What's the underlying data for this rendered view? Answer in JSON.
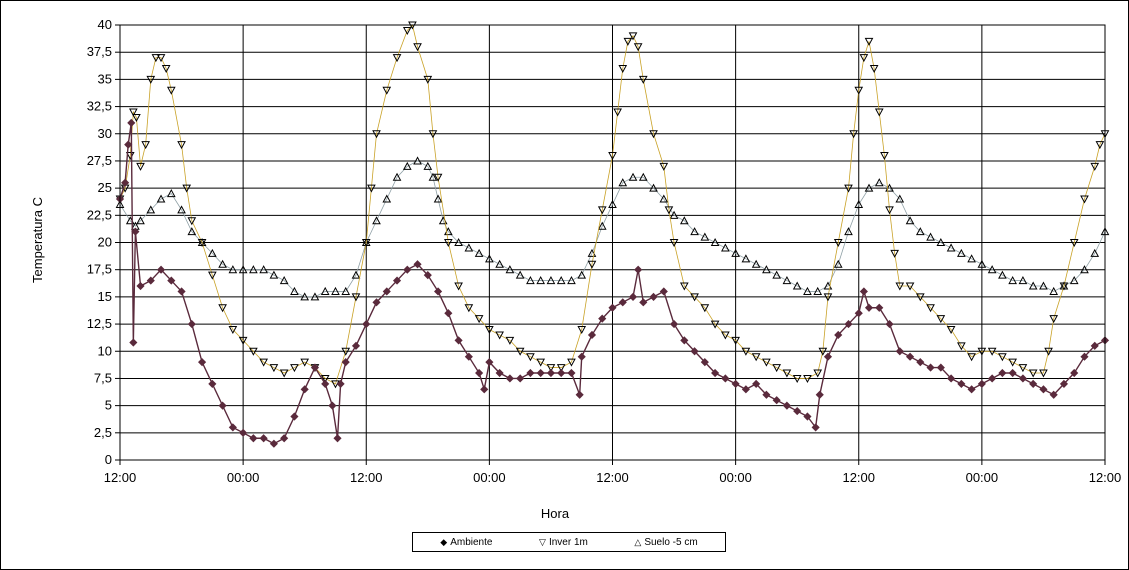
{
  "chart_data": {
    "type": "line",
    "xlabel": "Hora",
    "ylabel": "Temperatura C",
    "x_unit": "hours",
    "xlim": [
      0,
      96
    ],
    "ylim": [
      0,
      40
    ],
    "x_tick_labels": [
      "12:00",
      "00:00",
      "12:00",
      "00:00",
      "12:00",
      "00:00",
      "12:00",
      "00:00",
      "12:00"
    ],
    "y_tick_labels": [
      "0",
      "2,5",
      "5",
      "7,5",
      "10",
      "12,5",
      "15",
      "17,5",
      "20",
      "22,5",
      "25",
      "27,5",
      "30",
      "32,5",
      "35",
      "37,5",
      "40"
    ],
    "grid": true,
    "legend_position": "bottom",
    "series": [
      {
        "name": "Ambiente",
        "marker": "diamond",
        "color": "#5a2a3c",
        "points": [
          [
            0,
            24
          ],
          [
            0.5,
            25.5
          ],
          [
            0.8,
            29
          ],
          [
            1.1,
            31
          ],
          [
            1.3,
            10.8
          ],
          [
            1.5,
            21
          ],
          [
            2,
            16
          ],
          [
            3,
            16.5
          ],
          [
            4,
            17.5
          ],
          [
            5,
            16.5
          ],
          [
            6,
            15.5
          ],
          [
            7,
            12.5
          ],
          [
            8,
            9
          ],
          [
            9,
            7
          ],
          [
            10,
            5
          ],
          [
            11,
            3
          ],
          [
            12,
            2.5
          ],
          [
            13,
            2
          ],
          [
            14,
            2
          ],
          [
            15,
            1.5
          ],
          [
            16,
            2
          ],
          [
            17,
            4
          ],
          [
            18,
            6.5
          ],
          [
            19,
            8.5
          ],
          [
            20,
            7
          ],
          [
            20.7,
            5
          ],
          [
            21.2,
            2
          ],
          [
            21.5,
            7
          ],
          [
            22,
            9
          ],
          [
            23,
            10.5
          ],
          [
            24,
            12.5
          ],
          [
            25,
            14.5
          ],
          [
            26,
            15.5
          ],
          [
            27,
            16.5
          ],
          [
            28,
            17.5
          ],
          [
            29,
            18
          ],
          [
            30,
            17
          ],
          [
            31,
            15.5
          ],
          [
            32,
            13.5
          ],
          [
            33,
            11
          ],
          [
            34,
            9.5
          ],
          [
            35,
            8
          ],
          [
            35.5,
            6.5
          ],
          [
            36,
            9
          ],
          [
            37,
            8
          ],
          [
            38,
            7.5
          ],
          [
            39,
            7.5
          ],
          [
            40,
            8
          ],
          [
            41,
            8
          ],
          [
            42,
            8
          ],
          [
            43,
            8
          ],
          [
            44,
            8
          ],
          [
            44.8,
            6
          ],
          [
            45,
            9.5
          ],
          [
            46,
            11.5
          ],
          [
            47,
            13
          ],
          [
            48,
            14
          ],
          [
            49,
            14.5
          ],
          [
            50,
            15
          ],
          [
            50.5,
            17.5
          ],
          [
            51,
            14.5
          ],
          [
            52,
            15
          ],
          [
            53,
            15.5
          ],
          [
            54,
            12.5
          ],
          [
            55,
            11
          ],
          [
            56,
            10
          ],
          [
            57,
            9
          ],
          [
            58,
            8
          ],
          [
            59,
            7.5
          ],
          [
            60,
            7
          ],
          [
            61,
            6.5
          ],
          [
            62,
            7
          ],
          [
            63,
            6
          ],
          [
            64,
            5.5
          ],
          [
            65,
            5
          ],
          [
            66,
            4.5
          ],
          [
            67,
            4
          ],
          [
            67.8,
            3
          ],
          [
            68.2,
            6
          ],
          [
            69,
            9.5
          ],
          [
            70,
            11.5
          ],
          [
            71,
            12.5
          ],
          [
            72,
            13.5
          ],
          [
            72.5,
            15.5
          ],
          [
            73,
            14
          ],
          [
            74,
            14
          ],
          [
            75,
            12.5
          ],
          [
            76,
            10
          ],
          [
            77,
            9.5
          ],
          [
            78,
            9
          ],
          [
            79,
            8.5
          ],
          [
            80,
            8.5
          ],
          [
            81,
            7.5
          ],
          [
            82,
            7
          ],
          [
            83,
            6.5
          ],
          [
            84,
            7
          ],
          [
            85,
            7.5
          ],
          [
            86,
            8
          ],
          [
            87,
            8
          ],
          [
            88,
            7.5
          ],
          [
            89,
            7
          ],
          [
            90,
            6.5
          ],
          [
            91,
            6
          ],
          [
            92,
            7
          ],
          [
            93,
            8
          ],
          [
            94,
            9.5
          ],
          [
            95,
            10.5
          ],
          [
            96,
            11
          ]
        ]
      },
      {
        "name": "Inver 1m",
        "marker": "triangle-down",
        "color": "#c9a227",
        "points": [
          [
            0,
            24
          ],
          [
            0.5,
            25
          ],
          [
            1,
            28
          ],
          [
            1.3,
            32
          ],
          [
            1.6,
            31.5
          ],
          [
            2,
            27
          ],
          [
            2.5,
            29
          ],
          [
            3,
            35
          ],
          [
            3.5,
            37
          ],
          [
            4,
            37
          ],
          [
            4.5,
            36
          ],
          [
            5,
            34
          ],
          [
            6,
            29
          ],
          [
            6.5,
            25
          ],
          [
            7,
            22
          ],
          [
            8,
            20
          ],
          [
            9,
            17
          ],
          [
            10,
            14
          ],
          [
            11,
            12
          ],
          [
            12,
            11
          ],
          [
            13,
            10
          ],
          [
            14,
            9
          ],
          [
            15,
            8.5
          ],
          [
            16,
            8
          ],
          [
            17,
            8.5
          ],
          [
            18,
            9
          ],
          [
            19,
            8.5
          ],
          [
            20,
            7.5
          ],
          [
            21,
            7
          ],
          [
            22,
            10
          ],
          [
            23,
            15
          ],
          [
            24,
            20
          ],
          [
            24.5,
            25
          ],
          [
            25,
            30
          ],
          [
            26,
            34
          ],
          [
            27,
            37
          ],
          [
            28,
            39.5
          ],
          [
            28.5,
            40
          ],
          [
            29,
            38
          ],
          [
            30,
            35
          ],
          [
            30.5,
            30
          ],
          [
            31,
            26
          ],
          [
            32,
            20
          ],
          [
            33,
            16
          ],
          [
            34,
            14
          ],
          [
            35,
            13
          ],
          [
            36,
            12
          ],
          [
            37,
            11.5
          ],
          [
            38,
            11
          ],
          [
            39,
            10
          ],
          [
            40,
            9.5
          ],
          [
            41,
            9
          ],
          [
            42,
            8.5
          ],
          [
            43,
            8.5
          ],
          [
            44,
            9
          ],
          [
            45,
            12
          ],
          [
            46,
            18
          ],
          [
            47,
            23
          ],
          [
            48,
            28
          ],
          [
            48.5,
            32
          ],
          [
            49,
            36
          ],
          [
            49.5,
            38.5
          ],
          [
            50,
            39
          ],
          [
            50.5,
            38
          ],
          [
            51,
            35
          ],
          [
            52,
            30
          ],
          [
            53,
            27
          ],
          [
            53.5,
            23
          ],
          [
            54,
            20
          ],
          [
            55,
            16
          ],
          [
            56,
            15
          ],
          [
            57,
            14
          ],
          [
            58,
            12.5
          ],
          [
            59,
            11.5
          ],
          [
            60,
            11
          ],
          [
            61,
            10
          ],
          [
            62,
            9.5
          ],
          [
            63,
            9
          ],
          [
            64,
            8.5
          ],
          [
            65,
            8
          ],
          [
            66,
            7.5
          ],
          [
            67,
            7.5
          ],
          [
            68,
            8
          ],
          [
            68.5,
            10
          ],
          [
            69,
            15
          ],
          [
            70,
            20
          ],
          [
            71,
            25
          ],
          [
            71.5,
            30
          ],
          [
            72,
            34
          ],
          [
            72.5,
            37
          ],
          [
            73,
            38.5
          ],
          [
            73.5,
            36
          ],
          [
            74,
            32
          ],
          [
            74.5,
            28
          ],
          [
            75,
            23
          ],
          [
            75.5,
            19
          ],
          [
            76,
            16
          ],
          [
            77,
            16
          ],
          [
            78,
            15
          ],
          [
            79,
            14
          ],
          [
            80,
            13
          ],
          [
            81,
            12
          ],
          [
            82,
            10.5
          ],
          [
            83,
            9.5
          ],
          [
            84,
            10
          ],
          [
            85,
            10
          ],
          [
            86,
            9.5
          ],
          [
            87,
            9
          ],
          [
            88,
            8.5
          ],
          [
            89,
            8
          ],
          [
            90,
            8
          ],
          [
            90.5,
            10
          ],
          [
            91,
            13
          ],
          [
            92,
            16
          ],
          [
            93,
            20
          ],
          [
            94,
            24
          ],
          [
            95,
            27
          ],
          [
            95.5,
            29
          ],
          [
            96,
            30
          ]
        ]
      },
      {
        "name": "Suelo -5 cm",
        "marker": "triangle-up",
        "color": "#8fa0a6",
        "points": [
          [
            0,
            23.5
          ],
          [
            1,
            22
          ],
          [
            1.5,
            21.5
          ],
          [
            2,
            22
          ],
          [
            3,
            23
          ],
          [
            4,
            24
          ],
          [
            5,
            24.5
          ],
          [
            6,
            23
          ],
          [
            7,
            21
          ],
          [
            8,
            20
          ],
          [
            9,
            19
          ],
          [
            10,
            18
          ],
          [
            11,
            17.5
          ],
          [
            12,
            17.5
          ],
          [
            13,
            17.5
          ],
          [
            14,
            17.5
          ],
          [
            15,
            17
          ],
          [
            16,
            16.5
          ],
          [
            17,
            15.5
          ],
          [
            18,
            15
          ],
          [
            19,
            15
          ],
          [
            20,
            15.5
          ],
          [
            21,
            15.5
          ],
          [
            22,
            15.5
          ],
          [
            23,
            17
          ],
          [
            24,
            20
          ],
          [
            25,
            22
          ],
          [
            26,
            24
          ],
          [
            27,
            26
          ],
          [
            28,
            27
          ],
          [
            29,
            27.5
          ],
          [
            30,
            27
          ],
          [
            30.5,
            26
          ],
          [
            31,
            24
          ],
          [
            31.5,
            22
          ],
          [
            32,
            21
          ],
          [
            33,
            20
          ],
          [
            34,
            19.5
          ],
          [
            35,
            19
          ],
          [
            36,
            18.5
          ],
          [
            37,
            18
          ],
          [
            38,
            17.5
          ],
          [
            39,
            17
          ],
          [
            40,
            16.5
          ],
          [
            41,
            16.5
          ],
          [
            42,
            16.5
          ],
          [
            43,
            16.5
          ],
          [
            44,
            16.5
          ],
          [
            45,
            17
          ],
          [
            46,
            19
          ],
          [
            47,
            21.5
          ],
          [
            48,
            23.5
          ],
          [
            49,
            25.5
          ],
          [
            50,
            26
          ],
          [
            51,
            26
          ],
          [
            52,
            25
          ],
          [
            53,
            24
          ],
          [
            54,
            22.5
          ],
          [
            55,
            22
          ],
          [
            56,
            21
          ],
          [
            57,
            20.5
          ],
          [
            58,
            20
          ],
          [
            59,
            19.5
          ],
          [
            60,
            19
          ],
          [
            61,
            18.5
          ],
          [
            62,
            18
          ],
          [
            63,
            17.5
          ],
          [
            64,
            17
          ],
          [
            65,
            16.5
          ],
          [
            66,
            16
          ],
          [
            67,
            15.5
          ],
          [
            68,
            15.5
          ],
          [
            69,
            16
          ],
          [
            70,
            18
          ],
          [
            71,
            21
          ],
          [
            72,
            23.5
          ],
          [
            73,
            25
          ],
          [
            74,
            25.5
          ],
          [
            75,
            25
          ],
          [
            76,
            24
          ],
          [
            77,
            22
          ],
          [
            78,
            21
          ],
          [
            79,
            20.5
          ],
          [
            80,
            20
          ],
          [
            81,
            19.5
          ],
          [
            82,
            19
          ],
          [
            83,
            18.5
          ],
          [
            84,
            18
          ],
          [
            85,
            17.5
          ],
          [
            86,
            17
          ],
          [
            87,
            16.5
          ],
          [
            88,
            16.5
          ],
          [
            89,
            16
          ],
          [
            90,
            16
          ],
          [
            91,
            15.5
          ],
          [
            92,
            16
          ],
          [
            93,
            16.5
          ],
          [
            94,
            17.5
          ],
          [
            95,
            19
          ],
          [
            96,
            21
          ]
        ]
      }
    ]
  }
}
